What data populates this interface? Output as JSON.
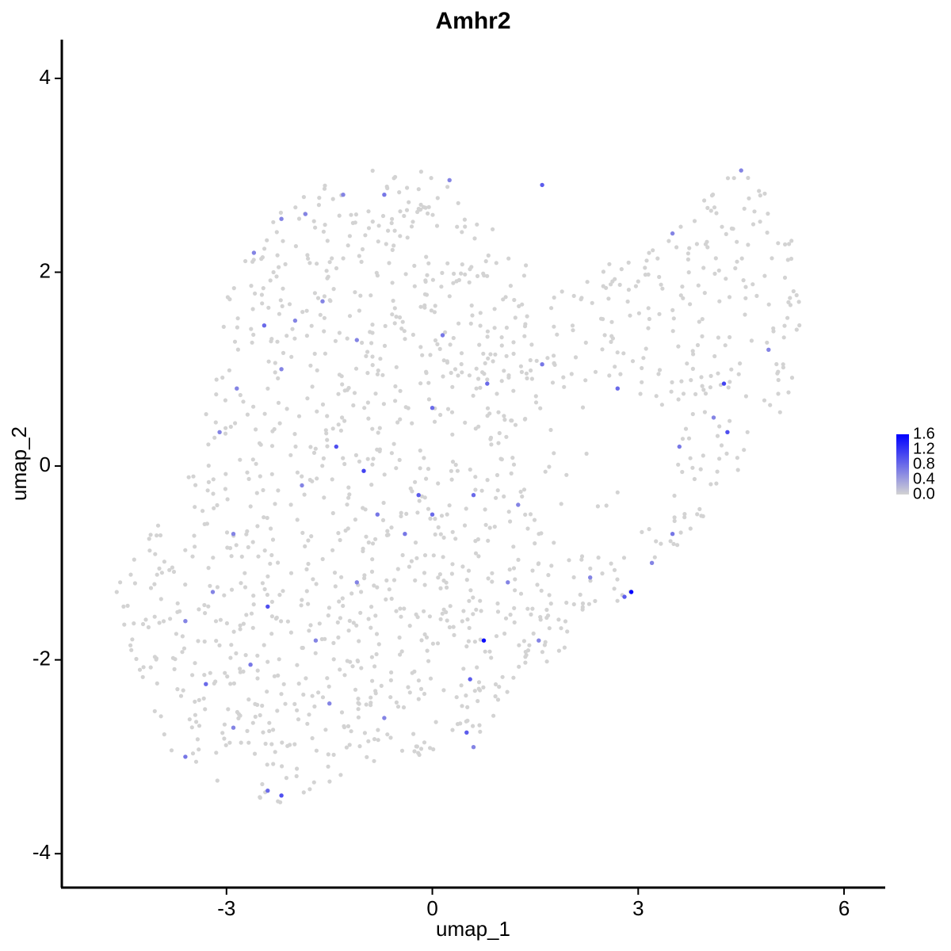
{
  "chart_data": {
    "type": "scatter",
    "title": "Amhr2",
    "xlabel": "umap_1",
    "ylabel": "umap_2",
    "xlim": [
      -5.4,
      6.6
    ],
    "ylim": [
      -4.35,
      4.4
    ],
    "x_ticks": [
      -3,
      0,
      3,
      6
    ],
    "x_tick_labels": [
      "-3",
      "0",
      "3",
      "6"
    ],
    "y_ticks": [
      -4,
      -2,
      0,
      2,
      4
    ],
    "y_tick_labels": [
      "-4",
      "-2",
      "0",
      "2",
      "4"
    ],
    "grid": false,
    "legend_position": "right",
    "color_scale": {
      "low": "#d3d3d3",
      "high": "#0000ff",
      "min": 0.0,
      "max": 1.6,
      "ticks": [
        0.0,
        0.4,
        0.8,
        1.2,
        1.6
      ],
      "tick_labels": [
        "0.0",
        "0.4",
        "0.8",
        "1.2",
        "1.6"
      ]
    },
    "background_cells": 1400,
    "expressing_points": [
      {
        "x": -2.6,
        "y": 2.2,
        "v": 0.6
      },
      {
        "x": -2.2,
        "y": 2.55,
        "v": 0.6
      },
      {
        "x": -1.85,
        "y": 2.6,
        "v": 0.6
      },
      {
        "x": -1.3,
        "y": 2.8,
        "v": 0.6
      },
      {
        "x": -0.7,
        "y": 2.8,
        "v": 0.7
      },
      {
        "x": 0.25,
        "y": 2.95,
        "v": 0.6
      },
      {
        "x": 1.6,
        "y": 2.9,
        "v": 0.9
      },
      {
        "x": -2.45,
        "y": 1.45,
        "v": 0.8
      },
      {
        "x": -2.0,
        "y": 1.5,
        "v": 0.6
      },
      {
        "x": -1.6,
        "y": 1.7,
        "v": 0.6
      },
      {
        "x": -1.1,
        "y": 1.3,
        "v": 0.6
      },
      {
        "x": 0.15,
        "y": 1.35,
        "v": 0.7
      },
      {
        "x": -2.2,
        "y": 1.0,
        "v": 0.6
      },
      {
        "x": -2.85,
        "y": 0.8,
        "v": 0.6
      },
      {
        "x": -1.4,
        "y": 0.2,
        "v": 1.0
      },
      {
        "x": -1.0,
        "y": -0.05,
        "v": 1.1
      },
      {
        "x": 0.0,
        "y": 0.6,
        "v": 0.8
      },
      {
        "x": 0.8,
        "y": 0.85,
        "v": 0.8
      },
      {
        "x": 1.6,
        "y": 1.05,
        "v": 0.7
      },
      {
        "x": 2.7,
        "y": 0.8,
        "v": 0.8
      },
      {
        "x": 3.5,
        "y": 2.4,
        "v": 0.6
      },
      {
        "x": 3.6,
        "y": 0.2,
        "v": 0.7
      },
      {
        "x": 4.1,
        "y": 0.5,
        "v": 0.6
      },
      {
        "x": 4.25,
        "y": 0.85,
        "v": 1.1
      },
      {
        "x": 4.3,
        "y": 0.35,
        "v": 1.0
      },
      {
        "x": 4.5,
        "y": 3.05,
        "v": 0.6
      },
      {
        "x": 4.9,
        "y": 1.2,
        "v": 0.6
      },
      {
        "x": 0.0,
        "y": -0.5,
        "v": 0.8
      },
      {
        "x": 0.6,
        "y": -0.3,
        "v": 0.8
      },
      {
        "x": 1.25,
        "y": -0.4,
        "v": 0.6
      },
      {
        "x": -0.8,
        "y": -0.5,
        "v": 0.7
      },
      {
        "x": -2.4,
        "y": -1.45,
        "v": 1.0
      },
      {
        "x": -3.2,
        "y": -1.3,
        "v": 0.6
      },
      {
        "x": -3.6,
        "y": -1.6,
        "v": 0.6
      },
      {
        "x": -3.3,
        "y": -2.25,
        "v": 0.8
      },
      {
        "x": -2.65,
        "y": -2.05,
        "v": 0.7
      },
      {
        "x": -2.2,
        "y": -3.4,
        "v": 1.0
      },
      {
        "x": -2.4,
        "y": -3.35,
        "v": 0.8
      },
      {
        "x": -3.6,
        "y": -3.0,
        "v": 0.7
      },
      {
        "x": -1.5,
        "y": -2.45,
        "v": 0.6
      },
      {
        "x": -0.7,
        "y": -2.6,
        "v": 0.6
      },
      {
        "x": 0.55,
        "y": -2.2,
        "v": 0.9
      },
      {
        "x": 0.75,
        "y": -1.8,
        "v": 1.5
      },
      {
        "x": 0.5,
        "y": -2.75,
        "v": 0.9
      },
      {
        "x": 0.6,
        "y": -2.9,
        "v": 0.6
      },
      {
        "x": 1.55,
        "y": -1.8,
        "v": 0.6
      },
      {
        "x": 2.3,
        "y": -1.15,
        "v": 0.6
      },
      {
        "x": 2.8,
        "y": -1.35,
        "v": 0.9
      },
      {
        "x": 2.9,
        "y": -1.3,
        "v": 1.6
      },
      {
        "x": 3.5,
        "y": -0.7,
        "v": 0.7
      },
      {
        "x": 3.2,
        "y": -1.0,
        "v": 0.6
      },
      {
        "x": -1.9,
        "y": -0.2,
        "v": 0.6
      },
      {
        "x": -2.9,
        "y": -0.7,
        "v": 0.6
      },
      {
        "x": -3.1,
        "y": 0.35,
        "v": 0.6
      },
      {
        "x": -0.2,
        "y": -0.3,
        "v": 0.9
      },
      {
        "x": -0.4,
        "y": -0.7,
        "v": 0.7
      },
      {
        "x": 1.1,
        "y": -1.2,
        "v": 0.6
      },
      {
        "x": -1.1,
        "y": -1.2,
        "v": 0.6
      },
      {
        "x": -1.7,
        "y": -1.8,
        "v": 0.6
      },
      {
        "x": -2.9,
        "y": -2.7,
        "v": 0.6
      }
    ]
  }
}
